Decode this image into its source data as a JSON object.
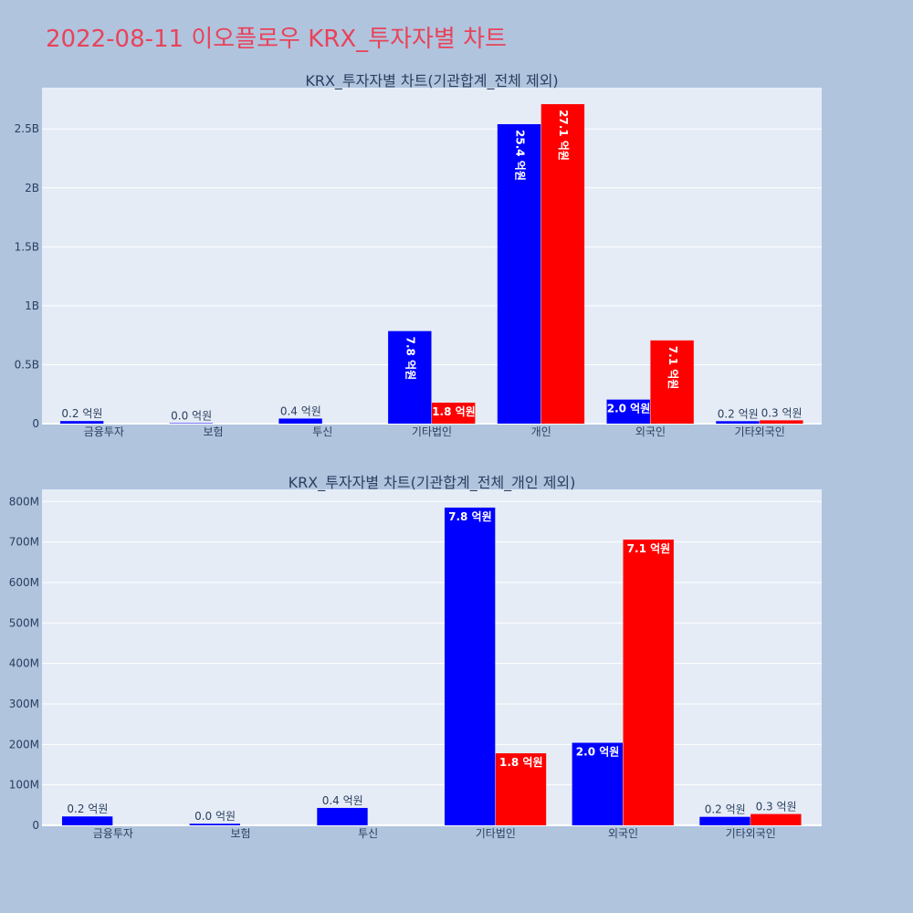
{
  "page": {
    "title": "2022-08-11 이오플로우 KRX_투자자별 차트"
  },
  "colors": {
    "background": "#b0c4de",
    "plot_bg": "#e5ecf6",
    "grid": "#ffffff",
    "title": "#e8435a",
    "text": "#2a3f5f",
    "series_a": "#0000ff",
    "series_b": "#ff0000"
  },
  "chart_data": [
    {
      "type": "bar",
      "title": "KRX_투자자별 차트(기관합계_전체 제외)",
      "categories": [
        "금융투자",
        "보험",
        "투신",
        "기타법인",
        "개인",
        "외국인",
        "기타외국인"
      ],
      "series": [
        {
          "color": "#0000ff",
          "values": [
            22000000,
            4000000,
            43000000,
            785000000,
            2540000000,
            204000000,
            21000000
          ],
          "labels": [
            "0.2 억원",
            "0.0 억원",
            "0.4 억원",
            "7.8 억원",
            "25.4 억원",
            "2.0 억원",
            "0.2 억원"
          ]
        },
        {
          "color": "#ff0000",
          "values": [
            0,
            0,
            0,
            178000000,
            2710000000,
            706000000,
            28000000
          ],
          "labels": [
            "",
            "",
            "",
            "1.8 억원",
            "27.1 억원",
            "7.1 억원",
            "0.3 억원"
          ]
        }
      ],
      "ylim": [
        0,
        2850000000
      ],
      "yticks": [
        0,
        500000000,
        1000000000,
        1500000000,
        2000000000,
        2500000000
      ],
      "ytick_labels": [
        "0",
        "0.5B",
        "1B",
        "1.5B",
        "2B",
        "2.5B"
      ],
      "grid": true
    },
    {
      "type": "bar",
      "title": "KRX_투자자별 차트(기관합계_전체_개인 제외)",
      "categories": [
        "금융투자",
        "보험",
        "투신",
        "기타법인",
        "외국인",
        "기타외국인"
      ],
      "series": [
        {
          "color": "#0000ff",
          "values": [
            22000000,
            4000000,
            43000000,
            785000000,
            204000000,
            21000000
          ],
          "labels": [
            "0.2 억원",
            "0.0 억원",
            "0.4 억원",
            "7.8 억원",
            "2.0 억원",
            "0.2 억원"
          ]
        },
        {
          "color": "#ff0000",
          "values": [
            0,
            0,
            0,
            178000000,
            706000000,
            28000000
          ],
          "labels": [
            "",
            "",
            "",
            "1.8 억원",
            "7.1 억원",
            "0.3 억원"
          ]
        }
      ],
      "ylim": [
        0,
        830000000
      ],
      "yticks": [
        0,
        100000000,
        200000000,
        300000000,
        400000000,
        500000000,
        600000000,
        700000000,
        800000000
      ],
      "ytick_labels": [
        "0",
        "100M",
        "200M",
        "300M",
        "400M",
        "500M",
        "600M",
        "700M",
        "800M"
      ],
      "grid": true
    }
  ]
}
